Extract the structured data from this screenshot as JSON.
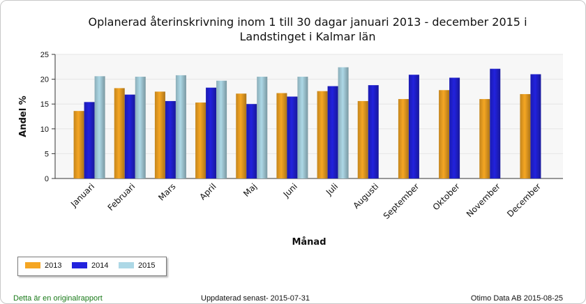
{
  "chart_data": {
    "type": "bar",
    "title_line1": "Oplanerad återinskrivning inom 1 till 30 dagar januari 2013 - december 2015 i",
    "title_line2": "Landstinget i Kalmar län",
    "xlabel": "Månad",
    "ylabel": "Andel %",
    "ylim": [
      0,
      25
    ],
    "yticks": [
      "0",
      "5",
      "10",
      "15",
      "20",
      "25"
    ],
    "grid": true,
    "legend_position": "bottom-left",
    "categories": [
      "Januari",
      "Februari",
      "Mars",
      "April",
      "Maj",
      "Juni",
      "Juli",
      "Augusti",
      "September",
      "Oktober",
      "November",
      "December"
    ],
    "series": [
      {
        "name": "2013",
        "color": "#f5a623",
        "values": [
          13.6,
          18.2,
          17.5,
          15.3,
          17.1,
          17.2,
          17.6,
          15.6,
          16.0,
          17.8,
          16.0,
          17.0
        ]
      },
      {
        "name": "2014",
        "color": "#2222dd",
        "values": [
          15.4,
          16.9,
          15.6,
          18.3,
          15.0,
          16.5,
          18.6,
          18.8,
          20.9,
          20.3,
          22.1,
          21.0
        ]
      },
      {
        "name": "2015",
        "color": "#add8e6",
        "values": [
          20.6,
          20.5,
          20.8,
          19.7,
          20.5,
          20.5,
          22.4,
          null,
          null,
          null,
          null,
          null
        ]
      }
    ]
  },
  "footer": {
    "left": "Detta är en originalrapport",
    "middle": "Uppdaterad senast- 2015-07-31",
    "right": "Otimo Data AB 2015-08-25"
  }
}
